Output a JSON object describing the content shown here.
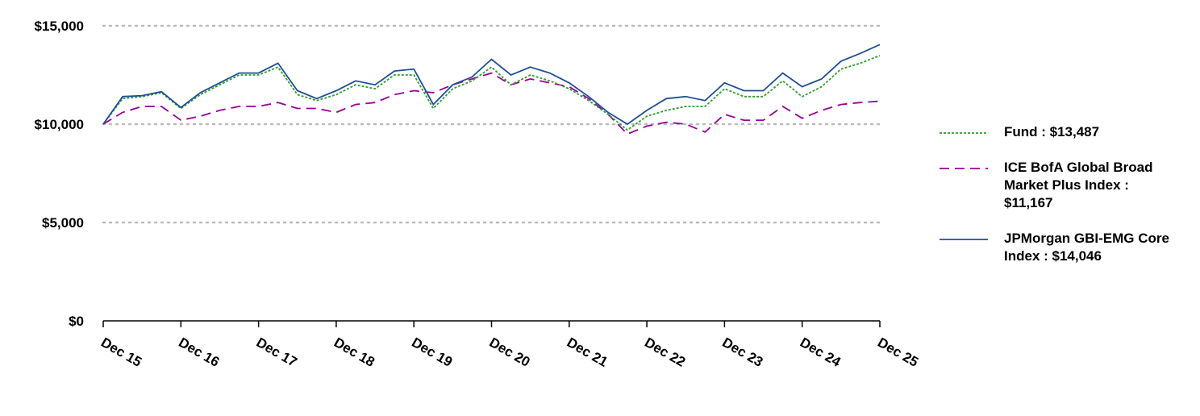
{
  "chart_data": {
    "type": "line",
    "categories": [
      "Dec 15",
      null,
      null,
      null,
      "Dec 16",
      null,
      null,
      null,
      "Dec 17",
      null,
      null,
      null,
      "Dec 18",
      null,
      null,
      null,
      "Dec 19",
      null,
      null,
      null,
      "Dec 20",
      null,
      null,
      null,
      "Dec 21",
      null,
      null,
      null,
      "Dec 22",
      null,
      null,
      null,
      "Dec 23",
      null,
      null,
      null,
      "Dec 24",
      null,
      null,
      null,
      "Dec 25"
    ],
    "series": [
      {
        "name": "Fund : $13,487",
        "color": "#2ca02c",
        "line_style": "dotted",
        "values": [
          10000,
          11300,
          11400,
          11600,
          10800,
          11500,
          12000,
          12500,
          12500,
          12900,
          11500,
          11200,
          11500,
          12000,
          11800,
          12500,
          12500,
          10800,
          11800,
          12200,
          12900,
          12000,
          12500,
          12200,
          11800,
          11200,
          10500,
          9700,
          10400,
          10700,
          10900,
          10900,
          11800,
          11400,
          11400,
          12200,
          11400,
          11900,
          12800,
          13100,
          13487
        ]
      },
      {
        "name": "ICE BofA Global Broad Market Plus Index : $11,167",
        "color": "#990099",
        "line_style": "dashed",
        "values": [
          10000,
          10600,
          10900,
          10900,
          10200,
          10400,
          10700,
          10900,
          10900,
          11100,
          10800,
          10800,
          10600,
          11000,
          11100,
          11500,
          11700,
          11600,
          12000,
          12300,
          12600,
          12000,
          12300,
          12100,
          11900,
          11300,
          10500,
          9500,
          9900,
          10100,
          10000,
          9600,
          10500,
          10200,
          10200,
          10900,
          10300,
          10700,
          11000,
          11100,
          11167
        ]
      },
      {
        "name": "JPMorgan GBI-EMG Core Index : $14,046",
        "color": "#1f4e96",
        "line_style": "solid",
        "values": [
          10000,
          11400,
          11450,
          11650,
          10850,
          11600,
          12100,
          12600,
          12600,
          13100,
          11700,
          11300,
          11700,
          12200,
          12000,
          12700,
          12800,
          11000,
          12000,
          12400,
          13300,
          12500,
          12900,
          12600,
          12100,
          11400,
          10600,
          10000,
          10700,
          11300,
          11400,
          11200,
          12100,
          11700,
          11700,
          12600,
          11900,
          12300,
          13200,
          13600,
          14046
        ]
      }
    ],
    "ylim": [
      0,
      15000
    ],
    "yticks": [
      {
        "value": 0,
        "label": "$0"
      },
      {
        "value": 5000,
        "label": "$5,000"
      },
      {
        "value": 10000,
        "label": "$10,000"
      },
      {
        "value": 15000,
        "label": "$15,000"
      }
    ],
    "grid": true
  }
}
